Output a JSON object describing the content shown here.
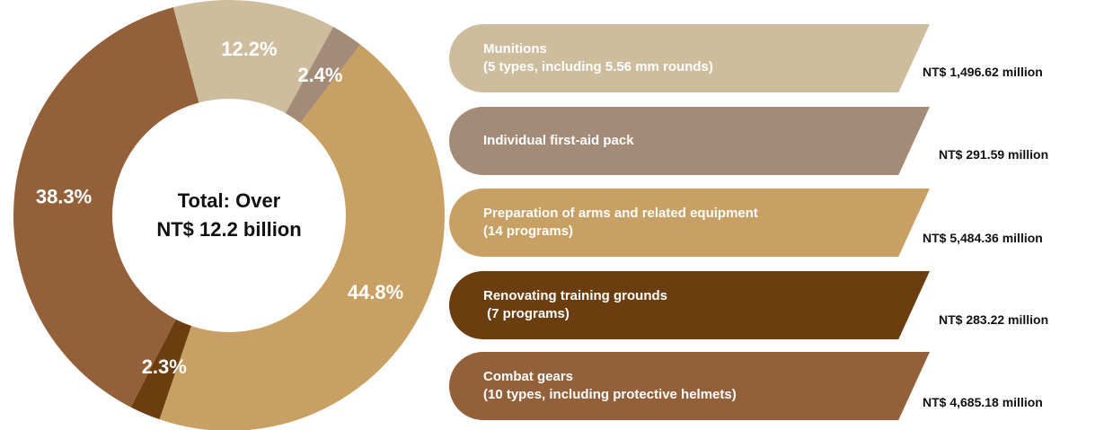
{
  "chart_data": {
    "type": "donut",
    "center_label": [
      "Total: Over",
      "NT$ 12.2 billion"
    ],
    "categories": [
      "Munitions\n(5 types, including 5.56 mm rounds)",
      "Individual first-aid pack",
      "Preparation of arms and related equipment\n(14 programs)",
      "Renovating training grounds\n (7 programs)",
      "Combat gears\n(10 types, including protective helmets)"
    ],
    "values": [
      12.2,
      2.4,
      44.8,
      2.3,
      38.3
    ],
    "value_labels": [
      "12.2%",
      "2.4%",
      "44.8%",
      "2.3%",
      "38.3%"
    ],
    "amount_labels": [
      "NT$ 1,496.62 million",
      "NT$ 291.59 million",
      "NT$ 5,484.36 million",
      "NT$ 283.22 million",
      "NT$ 4,685.18 million"
    ],
    "colors": [
      "#cdbd9c",
      "#a38b78",
      "#c9a063",
      "#6b3d0f",
      "#93603a"
    ]
  }
}
